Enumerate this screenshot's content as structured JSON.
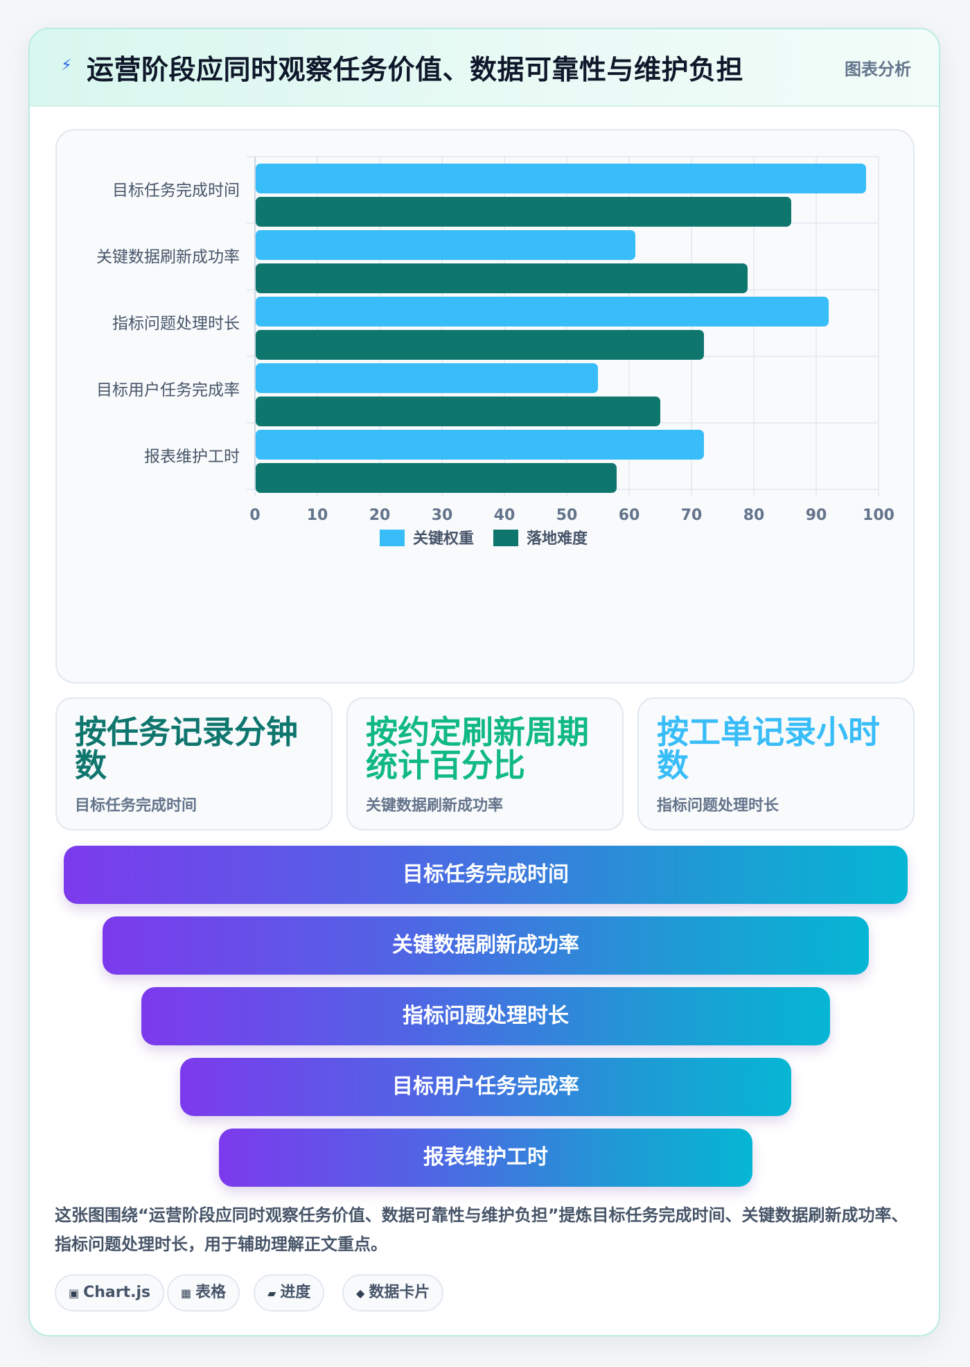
{
  "header": {
    "icon": "lightning-icon",
    "title": "运营阶段应同时观察任务价值、数据可靠性与维护负担",
    "tag": "图表分析"
  },
  "chart_data": {
    "type": "bar",
    "orientation": "horizontal",
    "categories": [
      "目标任务完成时间",
      "关键数据刷新成功率",
      "指标问题处理时长",
      "目标用户任务完成率",
      "报表维护工时"
    ],
    "series": [
      {
        "name": "关键权重",
        "color": "#38bdf8",
        "values": [
          98,
          61,
          92,
          55,
          72
        ]
      },
      {
        "name": "落地难度",
        "color": "#0f766e",
        "values": [
          86,
          79,
          72,
          65,
          58
        ]
      }
    ],
    "xlim": [
      0,
      100
    ],
    "xticks": [
      0,
      10,
      20,
      30,
      40,
      50,
      60,
      70,
      80,
      90,
      100
    ],
    "grid": true,
    "legend_position": "bottom"
  },
  "stats": [
    {
      "value": "按任务记录分钟数",
      "label": "目标任务完成时间",
      "color": "#0f766e"
    },
    {
      "value": "按约定刷新周期统计百分比",
      "label": "关键数据刷新成功率",
      "color": "#10b981"
    },
    {
      "value": "按工单记录小时数",
      "label": "指标问题处理时长",
      "color": "#38bdf8"
    }
  ],
  "funnel": [
    "目标任务完成时间",
    "关键数据刷新成功率",
    "指标问题处理时长",
    "目标用户任务完成率",
    "报表维护工时"
  ],
  "description": "这张图围绕“运营阶段应同时观察任务价值、数据可靠性与维护负担”提炼目标任务完成时间、关键数据刷新成功率、指标问题处理时长，用于辅助理解正文重点。",
  "tags": [
    {
      "glyph": "▣",
      "label": "Chart.js",
      "icon": "chart-icon"
    },
    {
      "glyph": "▦",
      "label": "表格",
      "icon": "table-icon"
    },
    {
      "glyph": "▰",
      "label": "进度",
      "icon": "progress-icon"
    },
    {
      "glyph": "◆",
      "label": "数据卡片",
      "icon": "card-icon"
    }
  ]
}
